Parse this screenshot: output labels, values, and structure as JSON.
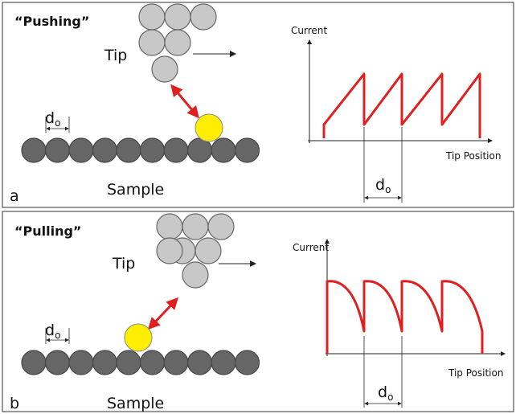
{
  "panels": [
    {
      "label": "“Pushing”",
      "tip": "Tip",
      "spacing": {
        "symbol": "d",
        "subscript": "o"
      },
      "sample": "Sample",
      "letter": "a",
      "graph": {
        "y_axis": "Current",
        "x_axis": "Tip Position",
        "period": {
          "symbol": "d",
          "subscript": "o"
        }
      }
    },
    {
      "label": "“Pulling”",
      "tip": "Tip",
      "spacing": {
        "symbol": "d",
        "subscript": "o"
      },
      "sample": "Sample",
      "letter": "b",
      "graph": {
        "y_axis": "Current",
        "x_axis": "Tip Position",
        "period": {
          "symbol": "d",
          "subscript": "o"
        }
      }
    }
  ]
}
